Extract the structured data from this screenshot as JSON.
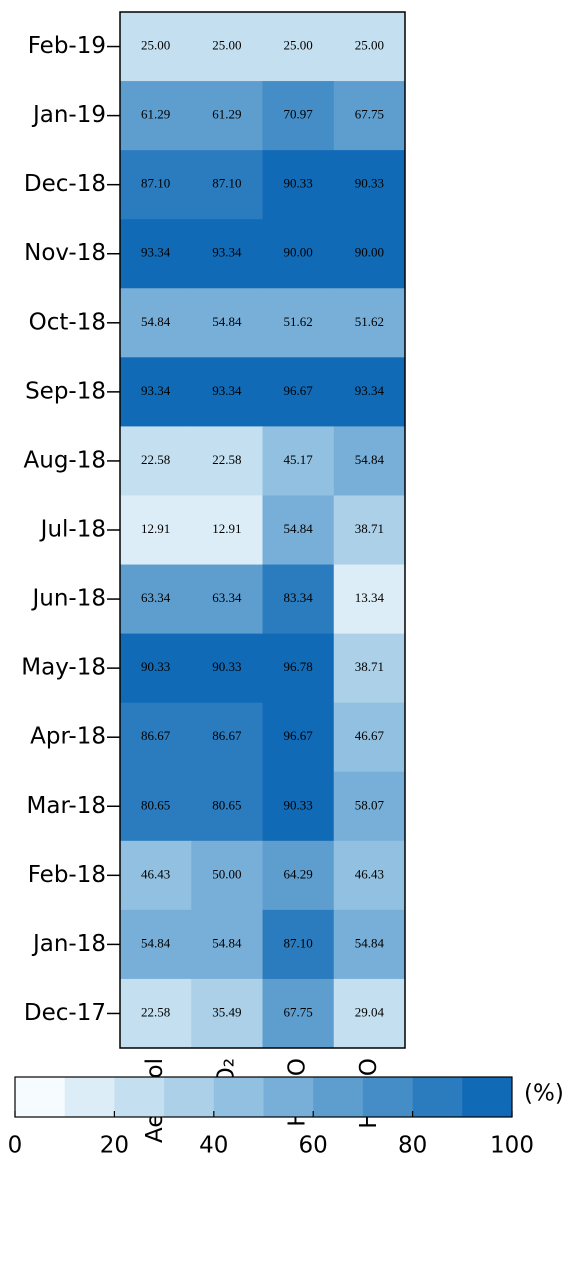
{
  "chart_data": {
    "type": "heatmap",
    "rows": [
      "Feb-19",
      "Jan-19",
      "Dec-18",
      "Nov-18",
      "Oct-18",
      "Sep-18",
      "Aug-18",
      "Jul-18",
      "Jun-18",
      "May-18",
      "Apr-18",
      "Mar-18",
      "Feb-18",
      "Jan-18",
      "Dec-17"
    ],
    "columns": [
      "Aerosol",
      "NO₂",
      "HCHO",
      "HONO"
    ],
    "values": [
      [
        25,
        25,
        25,
        25
      ],
      [
        61.29,
        61.29,
        70.97,
        67.75
      ],
      [
        87.1,
        87.1,
        90.33,
        90.33
      ],
      [
        93.34,
        93.34,
        90,
        90
      ],
      [
        54.84,
        54.84,
        51.62,
        51.62
      ],
      [
        93.34,
        93.34,
        96.67,
        93.34
      ],
      [
        22.58,
        22.58,
        45.17,
        54.84
      ],
      [
        12.91,
        12.91,
        54.84,
        38.71
      ],
      [
        63.34,
        63.34,
        83.34,
        13.34
      ],
      [
        90.33,
        90.33,
        96.78,
        38.71
      ],
      [
        86.67,
        86.67,
        96.67,
        46.67
      ],
      [
        80.65,
        80.65,
        90.33,
        58.07
      ],
      [
        46.43,
        50,
        64.29,
        46.43
      ],
      [
        54.84,
        54.84,
        87.1,
        54.84
      ],
      [
        22.58,
        35.49,
        67.75,
        29.04
      ]
    ],
    "value_labels": [
      [
        "25.00",
        "25.00",
        "25.00",
        "25.00"
      ],
      [
        "61.29",
        "61.29",
        "70.97",
        "67.75"
      ],
      [
        "87.10",
        "87.10",
        "90.33",
        "90.33"
      ],
      [
        "93.34",
        "93.34",
        "90.00",
        "90.00"
      ],
      [
        "54.84",
        "54.84",
        "51.62",
        "51.62"
      ],
      [
        "93.34",
        "93.34",
        "96.67",
        "93.34"
      ],
      [
        "22.58",
        "22.58",
        "45.17",
        "54.84"
      ],
      [
        "12.91",
        "12.91",
        "54.84",
        "38.71"
      ],
      [
        "63.34",
        "63.34",
        "83.34",
        "13.34"
      ],
      [
        "90.33",
        "90.33",
        "96.78",
        "38.71"
      ],
      [
        "86.67",
        "86.67",
        "96.67",
        "46.67"
      ],
      [
        "80.65",
        "80.65",
        "90.33",
        "58.07"
      ],
      [
        "46.43",
        "50.00",
        "64.29",
        "46.43"
      ],
      [
        "54.84",
        "54.84",
        "87.10",
        "54.84"
      ],
      [
        "22.58",
        "35.49",
        "67.75",
        "29.04"
      ]
    ],
    "colorbar": {
      "label": "(%)",
      "lim": [
        0,
        100
      ],
      "bins": [
        0,
        10,
        20,
        30,
        40,
        50,
        60,
        70,
        80,
        90,
        100
      ],
      "colors": [
        "#f5fbfe",
        "#dcedf7",
        "#c4e0f0",
        "#abd0e8",
        "#92c0e0",
        "#78afd8",
        "#5e9ecf",
        "#448dc7",
        "#2b7cbe",
        "#116ab5"
      ],
      "ticks": [
        0,
        20,
        40,
        60,
        80,
        100
      ]
    }
  }
}
